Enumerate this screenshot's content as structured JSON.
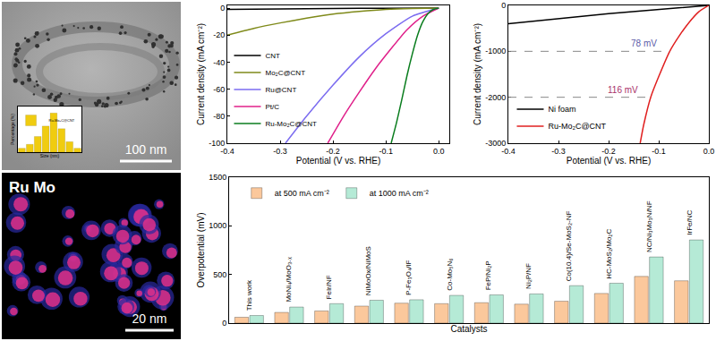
{
  "chart_data": [
    {
      "type": "line",
      "x_label": "Potential (V vs. RHE)",
      "y_label": "Current density (mA cm⁻²)",
      "xlim": [
        -0.4,
        0.02
      ],
      "xticks": [
        -0.4,
        -0.3,
        -0.2,
        -0.1,
        {
          "value": 0,
          "label": "0.0"
        }
      ],
      "ylim": [
        -100,
        2
      ],
      "yticks": [
        -100,
        -80,
        -60,
        -40,
        -20,
        0
      ],
      "grid": false,
      "legend": "middle left",
      "series": [
        {
          "name": "CNT",
          "color": "#000000",
          "x": [
            -0.4,
            -0.3,
            -0.2,
            -0.1,
            0
          ],
          "values": [
            -1,
            -0.6,
            -0.3,
            -0.1,
            0
          ]
        },
        {
          "name": "Mo₂C@CNT",
          "color": "#7f8a1a",
          "x": [
            -0.4,
            -0.35,
            -0.3,
            -0.25,
            -0.2,
            -0.15,
            -0.1,
            -0.05,
            0
          ],
          "values": [
            -20,
            -15,
            -11,
            -7.5,
            -4.5,
            -2.5,
            -1,
            -0.3,
            0
          ]
        },
        {
          "name": "Ru@CNT",
          "color": "#7b6cf0",
          "x": [
            -0.29,
            -0.25,
            -0.2,
            -0.15,
            -0.1,
            -0.05,
            0
          ],
          "values": [
            -100,
            -80,
            -57,
            -36,
            -19,
            -6,
            0
          ]
        },
        {
          "name": "Pt/C",
          "color": "#e0208a",
          "x": [
            -0.21,
            -0.18,
            -0.15,
            -0.12,
            -0.09,
            -0.06,
            -0.03,
            0
          ],
          "values": [
            -100,
            -80,
            -62,
            -45,
            -30,
            -16,
            -6,
            0
          ]
        },
        {
          "name": "Ru-Mo₂C@CNT",
          "color": "#0a7d1e",
          "x": [
            -0.09,
            -0.08,
            -0.07,
            -0.06,
            -0.05,
            -0.04,
            -0.03,
            -0.02,
            -0.01,
            0
          ],
          "values": [
            -100,
            -85,
            -68,
            -50,
            -34,
            -20,
            -10,
            -4,
            -1,
            0
          ]
        }
      ]
    },
    {
      "type": "line",
      "x_label": "Potential (V vs. RHE)",
      "y_label": "Current density (mA cm⁻²)",
      "xlim": [
        -0.4,
        0
      ],
      "xticks": [
        -0.4,
        -0.3,
        -0.2,
        -0.1,
        {
          "value": 0,
          "label": "0.0"
        }
      ],
      "ylim": [
        -3000,
        0
      ],
      "yticks": [
        -3000,
        -2000,
        -1000,
        0
      ],
      "grid": false,
      "legend": "lower left",
      "series": [
        {
          "name": "Ni foam",
          "color": "#000000",
          "x": [
            -0.4,
            -0.2,
            0
          ],
          "values": [
            -400,
            -180,
            0
          ]
        },
        {
          "name": "Ru-Mo₂C@CNT",
          "color": "#e02020",
          "x": [
            -0.137,
            -0.13,
            -0.116,
            -0.1,
            -0.078,
            -0.06,
            -0.04,
            -0.02,
            0
          ],
          "values": [
            -3000,
            -2600,
            -2000,
            -1550,
            -1000,
            -680,
            -380,
            -140,
            0
          ]
        }
      ],
      "annotations": [
        {
          "text": "78 mV",
          "x": -0.078,
          "y": -1000,
          "color": "#5a5aa8"
        },
        {
          "text": "116 mV",
          "x": -0.116,
          "y": -2000,
          "color": "#a8306a"
        }
      ]
    },
    {
      "type": "bar",
      "x_label": "Catalysts",
      "y_label": "Overpotential (mV)",
      "categories": [
        "This work",
        "MoNi₄/MoO₃₋ₓ",
        "FeIr/NF",
        "NiMoOx/NiMoS",
        "P-Fe₃O₄/IF",
        "Co-Mo₅N₆",
        "FeP/Ni₂P",
        "Ni₂P/NF",
        "Co(10.4)/Se-MoS₂-NF",
        "HC-MoS₂/Mo₂C",
        "NC/Ni₃Mo₃N/NF",
        "IrFe/NC"
      ],
      "ylim": [
        0,
        1500
      ],
      "yticks": [
        0,
        500,
        1000,
        1500
      ],
      "grid": false,
      "legend": "upper left",
      "tick_labels": "y",
      "series": [
        {
          "name": "at 500 mA cm⁻²",
          "color": "#fbc89c",
          "values": [
            60,
            110,
            125,
            175,
            205,
            200,
            210,
            195,
            225,
            305,
            480,
            435
          ]
        },
        {
          "name": "at 1000 mA cm⁻²",
          "color": "#b5ead6",
          "values": [
            78,
            165,
            200,
            235,
            240,
            285,
            290,
            300,
            385,
            410,
            680,
            855
          ]
        }
      ]
    },
    {
      "type": "bar",
      "x_label": "Size (nm)",
      "y_label": "Percentage (%)",
      "categories": [
        null,
        null,
        null,
        null,
        null,
        null,
        null,
        null
      ],
      "ylim": [
        0,
        35
      ],
      "grid": false,
      "legend": "upper right",
      "tick_labels": false,
      "series": [
        {
          "name": "Ru-Mo₂C@CNT",
          "color": "#f0cc10",
          "values": [
            3,
            6,
            12,
            20,
            30,
            18,
            8,
            3
          ]
        }
      ]
    }
  ],
  "images": [
    {
      "scale_bar": "100 nm"
    },
    {
      "label": "Ru Mo",
      "scale_bar": "20 nm"
    }
  ]
}
